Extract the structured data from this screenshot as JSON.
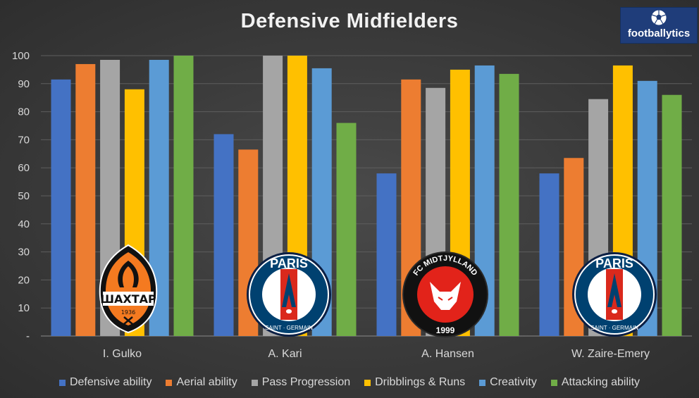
{
  "title": "Defensive Midfielders",
  "brand": {
    "text": "footballytics",
    "icon": "soccer-ball-icon"
  },
  "chart_data": {
    "type": "bar",
    "title": "Defensive Midfielders",
    "xlabel": "",
    "ylabel": "",
    "ylim": [
      0,
      100
    ],
    "yticks": [
      "-",
      "10",
      "20",
      "30",
      "40",
      "50",
      "60",
      "70",
      "80",
      "90",
      "100"
    ],
    "grid": true,
    "legend_position": "bottom",
    "categories": [
      "I. Gulko",
      "A. Kari",
      "A. Hansen",
      "W. Zaire-Emery"
    ],
    "series": [
      {
        "name": "Defensive ability",
        "color": "#4472c4",
        "values": [
          91.5,
          72,
          58,
          58
        ]
      },
      {
        "name": "Aerial ability",
        "color": "#ed7d31",
        "values": [
          97,
          66.5,
          91.5,
          63.5
        ]
      },
      {
        "name": "Pass Progression",
        "color": "#a5a5a5",
        "values": [
          98.5,
          100,
          88.5,
          84.5
        ]
      },
      {
        "name": "Dribblings & Runs",
        "color": "#ffc000",
        "values": [
          88,
          100,
          95,
          96.5
        ]
      },
      {
        "name": "Creativity",
        "color": "#5b9bd5",
        "values": [
          98.5,
          95.5,
          96.5,
          91
        ]
      },
      {
        "name": "Attacking ability",
        "color": "#70ad47",
        "values": [
          100,
          76,
          93.5,
          86
        ]
      }
    ],
    "club_badges": [
      {
        "icon": "shakhtar-badge-icon",
        "text": "ШАХТАР",
        "year": "1936"
      },
      {
        "icon": "psg-badge-icon",
        "text": "PARIS",
        "subtext": "SAINT · GERMAIN"
      },
      {
        "icon": "midtjylland-badge-icon",
        "text": "FC MIDTJYLLAND",
        "year": "1999"
      },
      {
        "icon": "psg-badge-icon",
        "text": "PARIS",
        "subtext": "SAINT · GERMAIN"
      }
    ]
  }
}
